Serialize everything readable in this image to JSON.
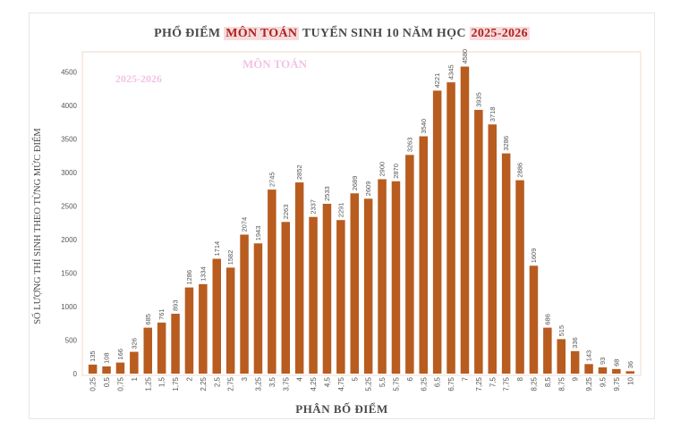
{
  "title": {
    "part1": "PHỔ ĐIỂM ",
    "part2": "MÔN TOÁN",
    "part3": " TUYỂN SINH 10 NĂM HỌC ",
    "part4": "2025-2026"
  },
  "watermarks": {
    "subject": "MÔN TOÁN",
    "year": "2025-2026"
  },
  "colors": {
    "bar": "#b85c1f",
    "highlight": "#b02020",
    "axis_text": "#555555"
  },
  "chart_data": {
    "type": "bar",
    "xlabel": "PHÂN BỐ ĐIỂM",
    "ylabel": "SỐ LƯỢNG THÍ SINH THEO TỪNG MỨC ĐIỂM",
    "ylim": [
      0,
      4800
    ],
    "yticks": [
      0,
      500,
      1000,
      1500,
      2000,
      2500,
      3000,
      3500,
      4000,
      4500
    ],
    "categories": [
      "0,25",
      "0,5",
      "0,75",
      "1",
      "1,25",
      "1,5",
      "1,75",
      "2",
      "2,25",
      "2,5",
      "2,75",
      "3",
      "3,25",
      "3,5",
      "3,75",
      "4",
      "4,25",
      "4,5",
      "4,75",
      "5",
      "5,25",
      "5,5",
      "5,75",
      "6",
      "6,25",
      "6,5",
      "6,75",
      "7",
      "7,25",
      "7,5",
      "7,75",
      "8",
      "8,25",
      "8,5",
      "8,75",
      "9",
      "9,25",
      "9,5",
      "9,75",
      "10"
    ],
    "values": [
      135,
      108,
      166,
      326,
      685,
      761,
      893,
      1286,
      1334,
      1714,
      1582,
      2074,
      1943,
      2745,
      2263,
      2852,
      2337,
      2533,
      2291,
      2689,
      2609,
      2900,
      2870,
      3263,
      3540,
      4221,
      4345,
      4580,
      3935,
      3718,
      3286,
      2886,
      1609,
      686,
      515,
      336,
      143,
      93,
      68,
      36
    ],
    "grid": false
  }
}
